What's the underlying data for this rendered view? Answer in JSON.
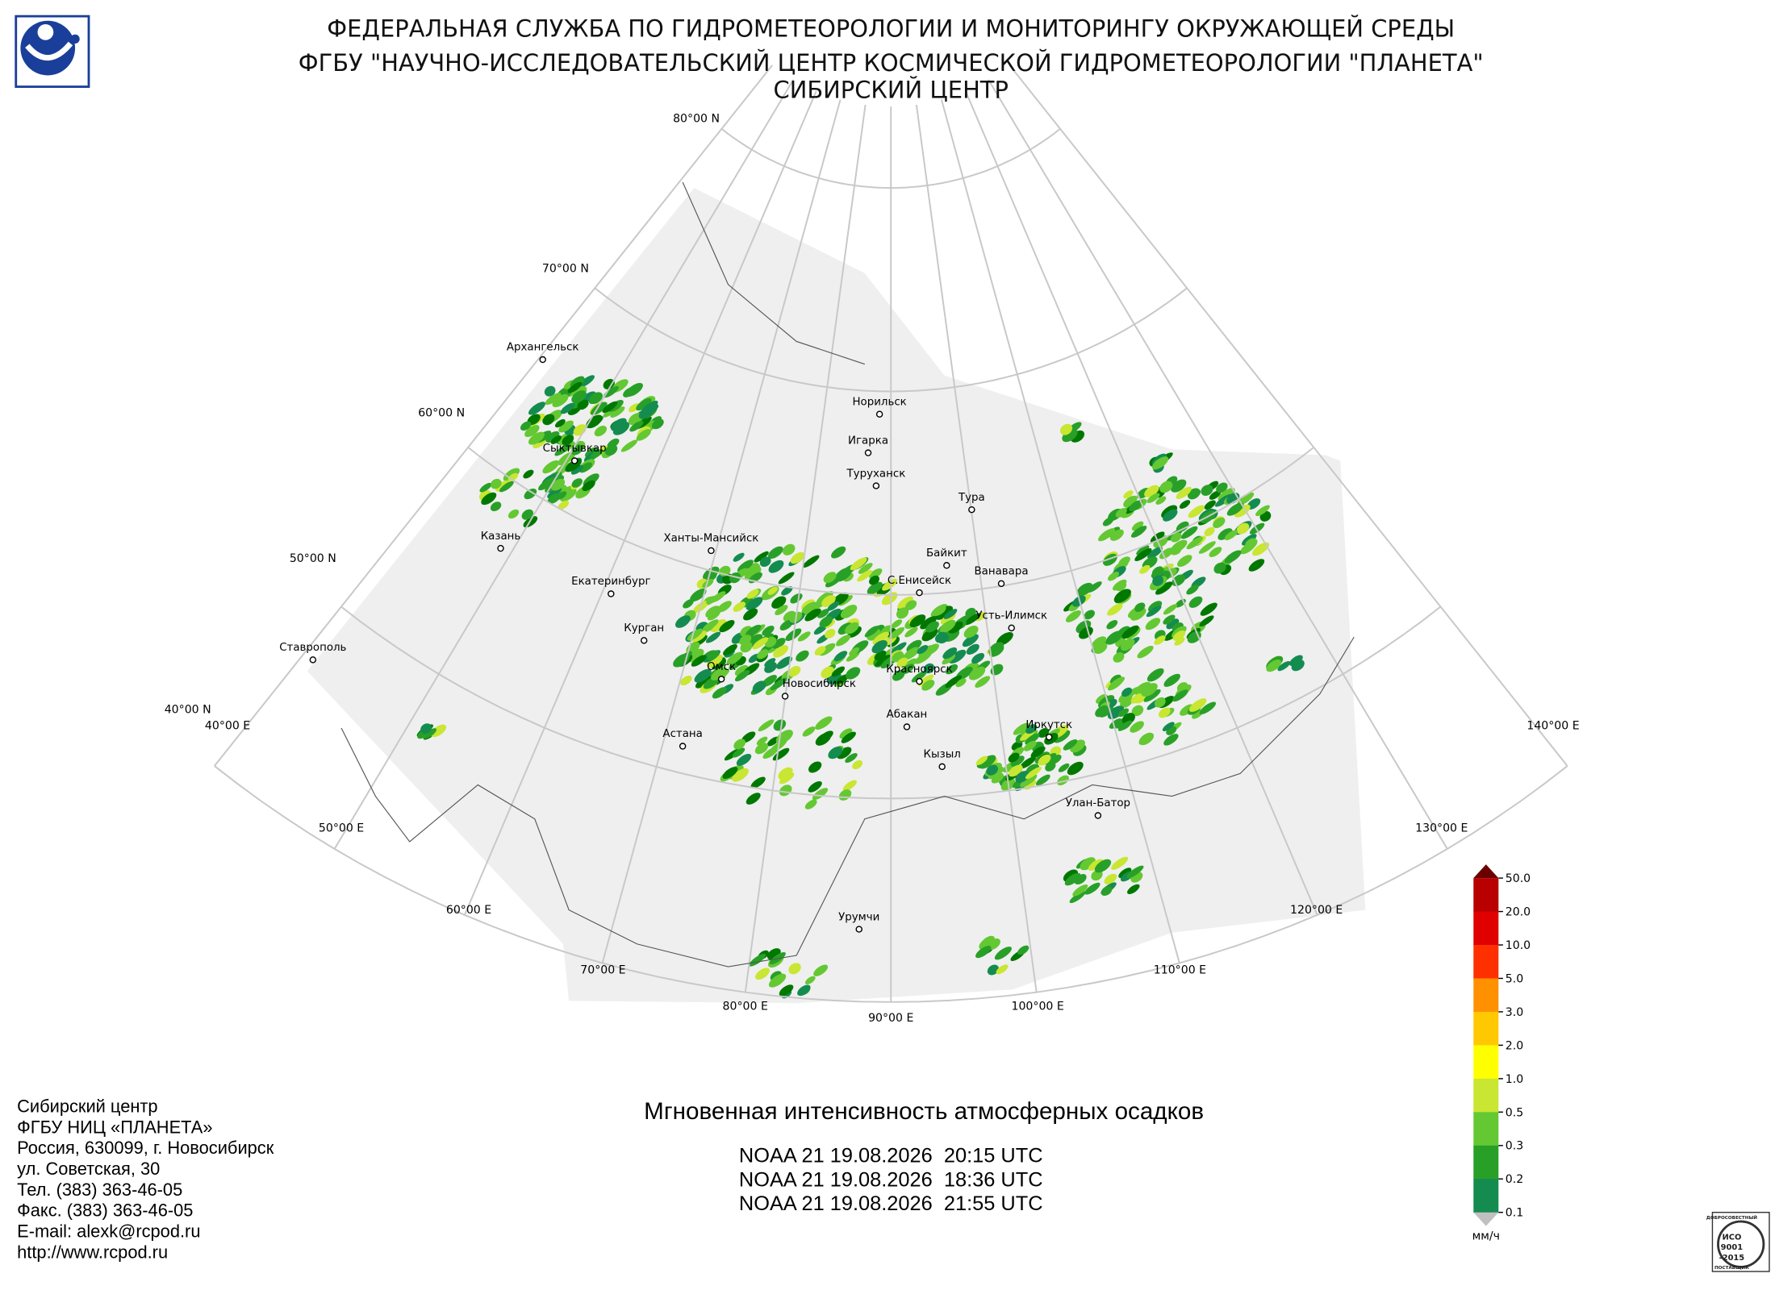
{
  "header": {
    "lines": [
      "ФЕДЕРАЛЬНАЯ СЛУЖБА ПО ГИДРОМЕТЕОРОЛОГИИ И МОНИТОРИНГУ ОКРУЖАЮЩЕЙ СРЕДЫ",
      "ФГБУ \"НАУЧНО-ИССЛЕДОВАТЕЛЬСКИЙ ЦЕНТР КОСМИЧЕСКОЙ ГИДРОМЕТЕОРОЛОГИИ \"ПЛАНЕТА\"",
      "СИБИРСКИЙ ЦЕНТР"
    ]
  },
  "map": {
    "lat_labels": [
      "80°00 N",
      "70°00 N",
      "60°00 N",
      "50°00 N",
      "40°00 N"
    ],
    "lon_labels": [
      "40°00 E",
      "50°00 E",
      "60°00 E",
      "70°00 E",
      "80°00 E",
      "90°00 E",
      "100°00 E",
      "110°00 E",
      "120°00 E",
      "130°00 E",
      "140°00 E"
    ],
    "cities": [
      "Архангельск",
      "Сыктывкар",
      "Казань",
      "Екатеринбург",
      "Курган",
      "Ставрополь",
      "Ханты-Мансийск",
      "Омск",
      "Астана",
      "Новосибирск",
      "Норильск",
      "Игарка",
      "Туруханск",
      "Тура",
      "Байкит",
      "Ванавара",
      "С.Енисейск",
      "Усть-Илимск",
      "Красноярск",
      "Абакан",
      "Кызыл",
      "Иркутск",
      "Улан-Батор",
      "Урумчи"
    ]
  },
  "product": {
    "title": "Мгновенная интенсивность атмосферных осадков",
    "passes": [
      "NOAA 21 19.08.2026  20:15 UTC",
      "NOAA 21 19.08.2026  18:36 UTC",
      "NOAA 21 19.08.2026  21:55 UTC"
    ]
  },
  "legend": {
    "labels": [
      "50.0",
      "20.0",
      "10.0",
      "5.0",
      "3.0",
      "2.0",
      "1.0",
      "0.5",
      "0.3",
      "0.2",
      "0.1"
    ],
    "unit": "мм/ч",
    "colors": [
      "#6b0000",
      "#b80000",
      "#e00000",
      "#ff3000",
      "#ff9000",
      "#ffc800",
      "#ffff00",
      "#c8e632",
      "#64c832",
      "#28a028",
      "#148c50",
      "#007800",
      "#c0c0c0"
    ]
  },
  "contact": {
    "lines": [
      "Сибирский центр",
      "ФГБУ НИЦ «ПЛАНЕТА»",
      "Россия, 630099, г. Новосибирск",
      "ул. Советская, 30",
      "Тел. (383) 363-46-05",
      "Факс. (383) 363-46-05",
      "E-mail: alexk@rcpod.ru",
      "http://www.rcpod.ru"
    ]
  },
  "iso_logo": {
    "lines": [
      "ДОБРОСОВЕСТНЫЙ",
      "ИСО",
      "9001",
      "-2015",
      "ПОСТАВЩИК"
    ]
  }
}
